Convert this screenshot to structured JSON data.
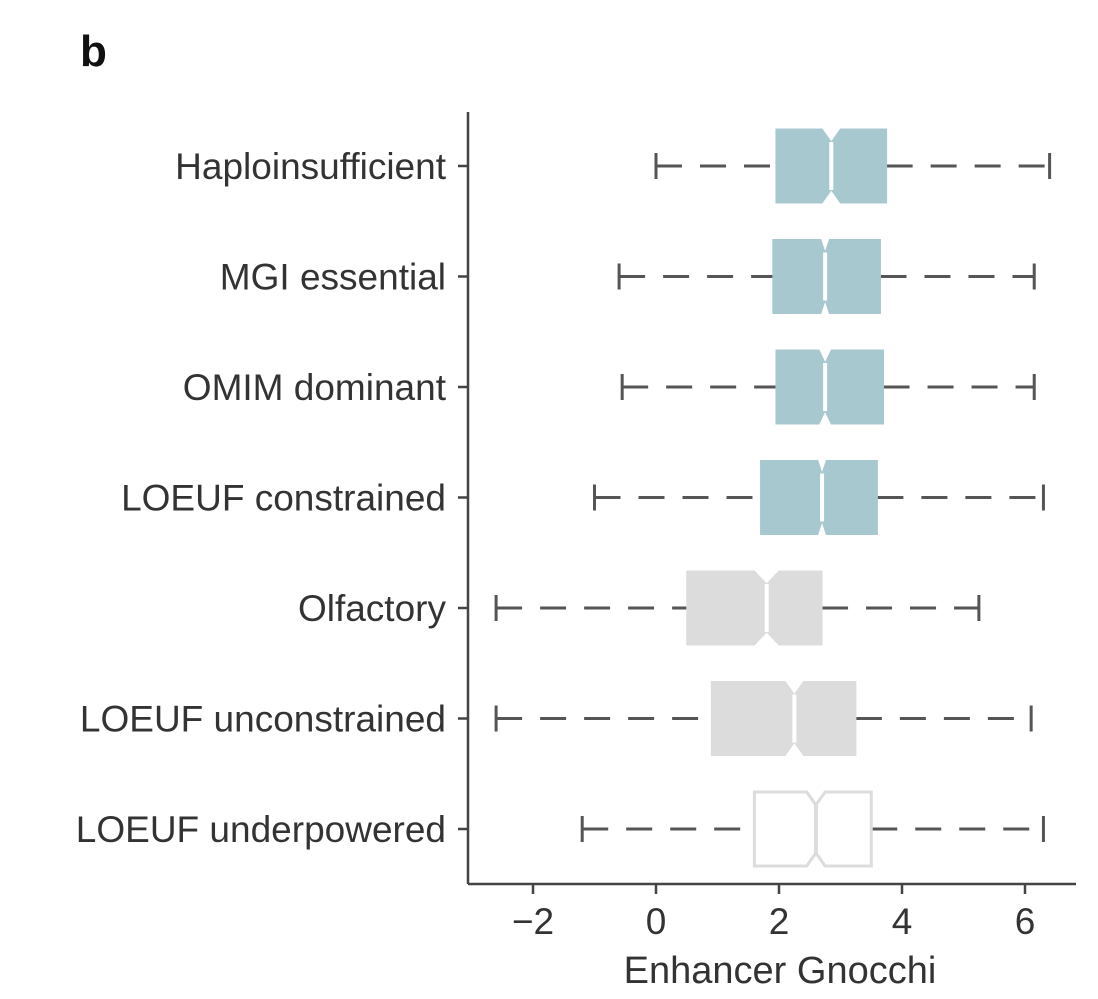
{
  "panel_label": "b",
  "chart_data": {
    "type": "box",
    "orientation": "horizontal",
    "notched": true,
    "xlabel": "Enhancer Gnocchi",
    "ylabel": "",
    "xlim": [
      -2.9,
      6.4
    ],
    "xticks": [
      -2,
      0,
      2,
      4,
      6
    ],
    "xtick_labels": [
      "−2",
      "0",
      "2",
      "4",
      "6"
    ],
    "grid": false,
    "categories": [
      "Haploinsufficient",
      "MGI essential",
      "OMIM dominant",
      "LOEUF constrained",
      "Olfactory",
      "LOEUF unconstrained",
      "LOEUF underpowered"
    ],
    "boxes": [
      {
        "category": "Haploinsufficient",
        "whisker_low": 0.0,
        "q1": 1.95,
        "median": 2.85,
        "q3": 3.75,
        "whisker_high": 6.4,
        "notch_low": 2.7,
        "notch_high": 3.0,
        "color": "#a8c8d0"
      },
      {
        "category": "MGI essential",
        "whisker_low": -0.6,
        "q1": 1.9,
        "median": 2.75,
        "q3": 3.65,
        "whisker_high": 6.15,
        "notch_low": 2.68,
        "notch_high": 2.82,
        "color": "#a8c8d0"
      },
      {
        "category": "OMIM dominant",
        "whisker_low": -0.55,
        "q1": 1.95,
        "median": 2.75,
        "q3": 3.7,
        "whisker_high": 6.15,
        "notch_low": 2.65,
        "notch_high": 2.85,
        "color": "#a8c8d0"
      },
      {
        "category": "LOEUF constrained",
        "whisker_low": -1.0,
        "q1": 1.7,
        "median": 2.7,
        "q3": 3.6,
        "whisker_high": 6.3,
        "notch_low": 2.63,
        "notch_high": 2.77,
        "color": "#a8c8d0"
      },
      {
        "category": "Olfactory",
        "whisker_low": -2.6,
        "q1": 0.5,
        "median": 1.8,
        "q3": 2.7,
        "whisker_high": 5.25,
        "notch_low": 1.6,
        "notch_high": 2.0,
        "color": "#dcdcdc"
      },
      {
        "category": "LOEUF unconstrained",
        "whisker_low": -2.6,
        "q1": 0.9,
        "median": 2.25,
        "q3": 3.25,
        "whisker_high": 6.1,
        "notch_low": 2.1,
        "notch_high": 2.4,
        "color": "#dcdcdc"
      },
      {
        "category": "LOEUF underpowered",
        "whisker_low": -1.2,
        "q1": 1.6,
        "median": 2.6,
        "q3": 3.5,
        "whisker_high": 6.3,
        "notch_low": 2.45,
        "notch_high": 2.75,
        "color": "#ffffff",
        "stroke": "#dcdcdc"
      }
    ]
  }
}
